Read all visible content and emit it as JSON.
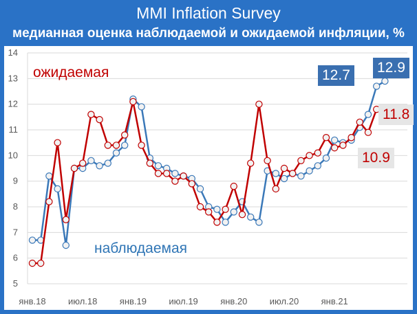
{
  "title": "MMI Inflation Survey",
  "subtitle": "медианная оценка наблюдаемой и ожидаемой инфляции, %",
  "colors": {
    "frame": "#2a72c6",
    "observed": "#3a78b8",
    "expected": "#c00000",
    "marker_fill": "#f2f2f2",
    "box_blue": "#3a6fb0",
    "box_gray": "#e6e6e6",
    "grid": "#d9d9d9"
  },
  "chart_data": {
    "type": "line",
    "x_labels": [
      "янв.18",
      "июл.18",
      "янв.19",
      "июл.19",
      "янв.20",
      "июл.20",
      "янв.21"
    ],
    "x": [
      "2018-01",
      "2018-02",
      "2018-03",
      "2018-04",
      "2018-05",
      "2018-06",
      "2018-07",
      "2018-08",
      "2018-09",
      "2018-10",
      "2018-11",
      "2018-12",
      "2019-01",
      "2019-02",
      "2019-03",
      "2019-04",
      "2019-05",
      "2019-06",
      "2019-07",
      "2019-08",
      "2019-09",
      "2019-10",
      "2019-11",
      "2019-12",
      "2020-01",
      "2020-02",
      "2020-03",
      "2020-04",
      "2020-05",
      "2020-06",
      "2020-07",
      "2020-08",
      "2020-09",
      "2020-10",
      "2020-11",
      "2020-12",
      "2021-01",
      "2021-02",
      "2021-03",
      "2021-04",
      "2021-05",
      "2021-06",
      "2021-07",
      "2021-08"
    ],
    "ylim": [
      5,
      14
    ],
    "y_ticks": [
      5,
      6,
      7,
      8,
      9,
      10,
      11,
      12,
      13,
      14
    ],
    "grid": "horizontal",
    "series": [
      {
        "name": "наблюдаемая",
        "color": "#3a78b8",
        "values": [
          6.7,
          6.7,
          9.2,
          8.7,
          6.5,
          9.5,
          9.5,
          9.8,
          9.6,
          9.7,
          10.1,
          10.4,
          12.2,
          11.9,
          9.9,
          9.6,
          9.5,
          9.3,
          9.2,
          9.1,
          8.7,
          8.0,
          7.9,
          7.4,
          7.8,
          8.2,
          7.6,
          7.4,
          9.4,
          9.3,
          9.1,
          9.3,
          9.2,
          9.4,
          9.6,
          9.9,
          10.6,
          10.5,
          10.6,
          11.1,
          11.6,
          12.7,
          12.9,
          null
        ]
      },
      {
        "name": "ожидаемая",
        "color": "#c00000",
        "values": [
          5.8,
          5.8,
          8.2,
          10.5,
          7.5,
          9.5,
          9.7,
          11.6,
          11.4,
          10.4,
          10.4,
          10.8,
          12.1,
          10.4,
          9.7,
          9.3,
          9.3,
          9.0,
          9.2,
          8.9,
          8.0,
          7.8,
          7.4,
          7.9,
          8.8,
          7.7,
          9.7,
          12.0,
          9.8,
          8.7,
          9.5,
          9.3,
          9.8,
          10.0,
          10.1,
          10.7,
          10.3,
          10.4,
          10.7,
          11.3,
          10.9,
          11.8,
          null,
          null
        ]
      }
    ]
  },
  "labels": {
    "expected_tag": "ожидаемая",
    "observed_tag": "наблюдаемая",
    "box_observed_prev": "12.7",
    "box_observed_last": "12.9",
    "box_expected_last": "11.8",
    "box_expected_prev": "10.9"
  }
}
